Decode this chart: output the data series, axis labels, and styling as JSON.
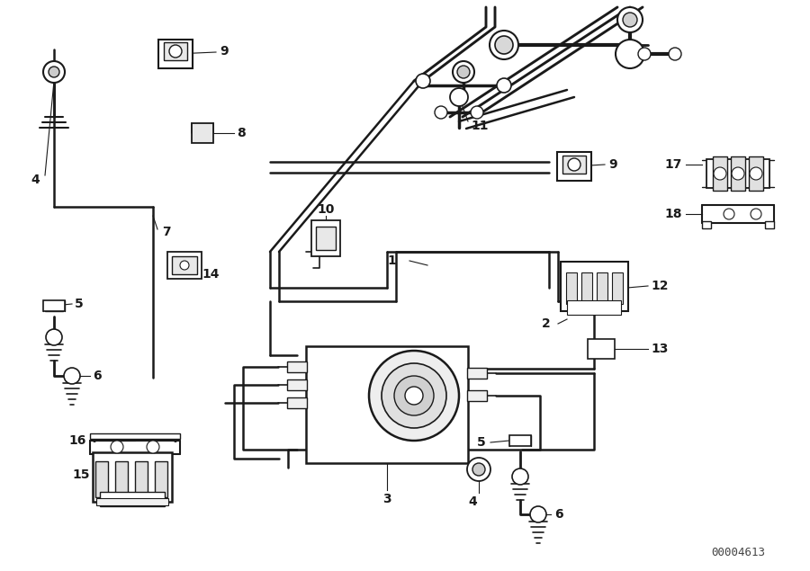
{
  "bg_color": "#ffffff",
  "lc": "#1a1a1a",
  "catalog_number": "00004613",
  "figsize": [
    9.0,
    6.35
  ],
  "dpi": 100,
  "pipe_lw": 1.8,
  "label_fs": 10
}
